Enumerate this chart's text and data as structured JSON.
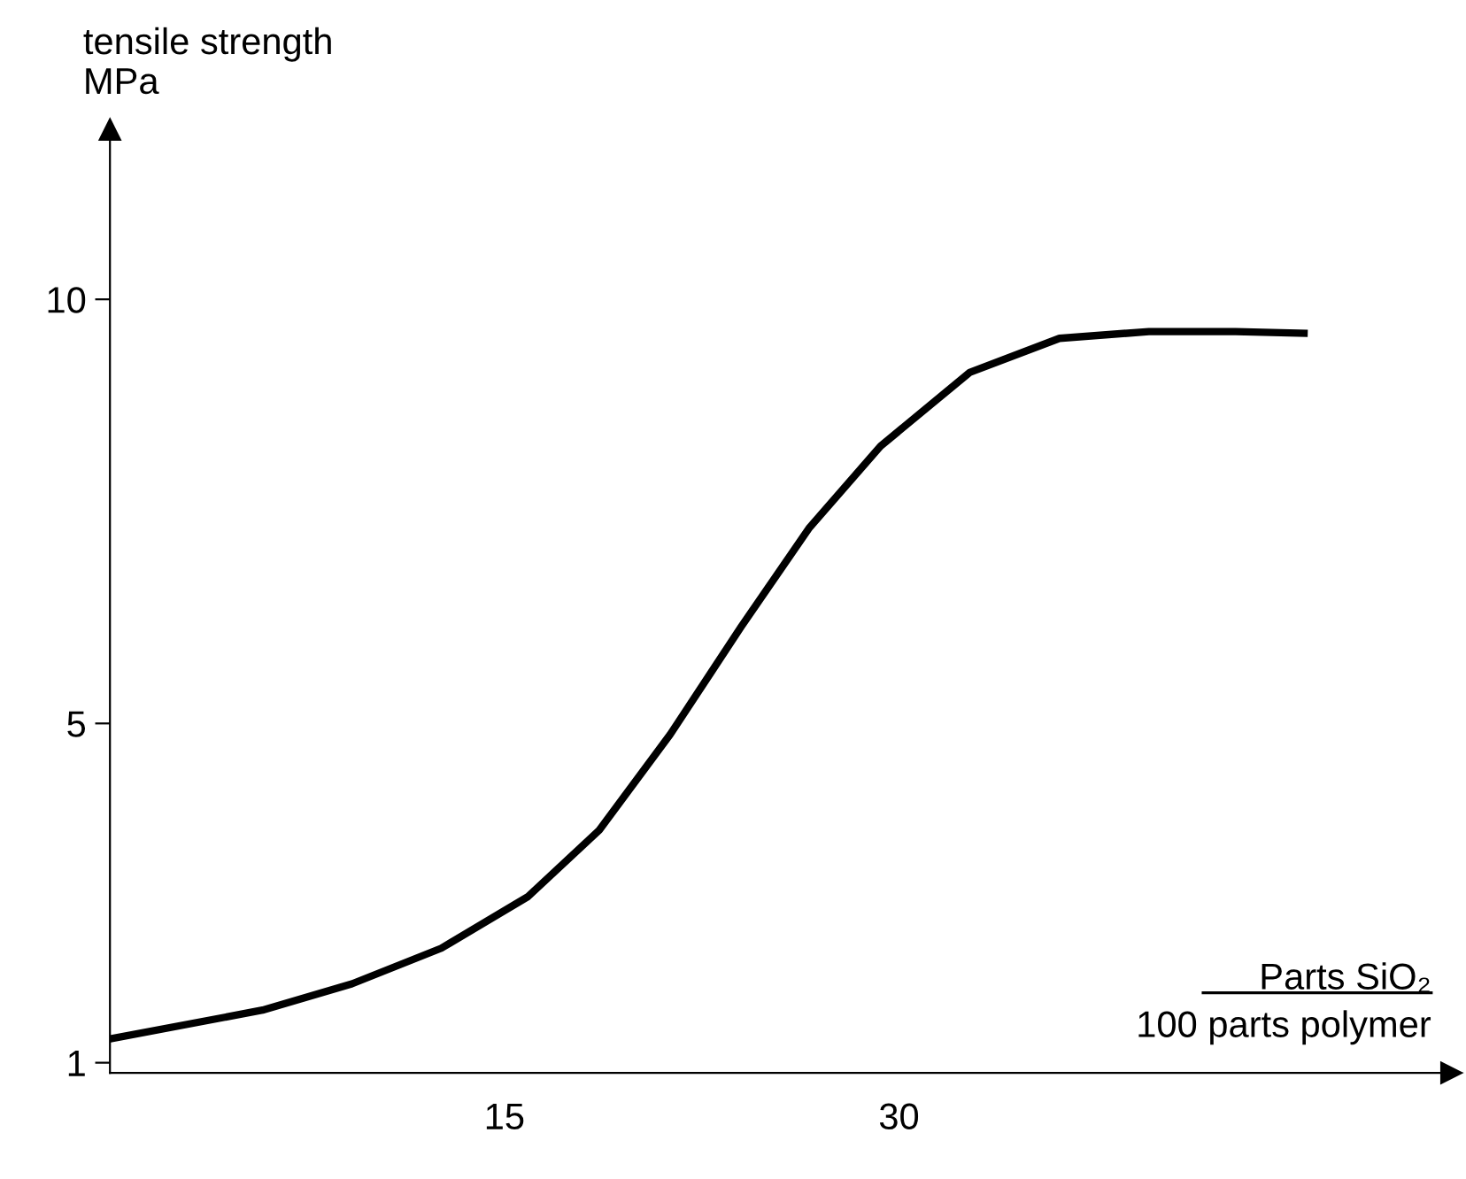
{
  "chart_data": {
    "type": "line",
    "ylabel": "tensile strength\nMPa",
    "xlabel": "Parts SiO₂\n100 parts polymer",
    "x": [
      0,
      5.8,
      9.2,
      12.6,
      15.9,
      18.6,
      21.3,
      24.0,
      26.6,
      29.3,
      32.7,
      36.1,
      39.5,
      42.8,
      45.4
    ],
    "series": [
      {
        "color": "#000000",
        "values": [
          1.28,
          1.62,
          1.93,
          2.35,
          2.96,
          3.74,
          4.87,
          6.14,
          7.31,
          8.27,
          9.14,
          9.54,
          9.62,
          9.62,
          9.6
        ]
      }
    ],
    "xlim": [
      0,
      51
    ],
    "ylim": [
      0.88,
      12
    ],
    "xticks": [
      15,
      30
    ],
    "yticks": [
      1,
      5,
      10
    ],
    "grid": false,
    "line_style": "solid",
    "marker": "none"
  }
}
